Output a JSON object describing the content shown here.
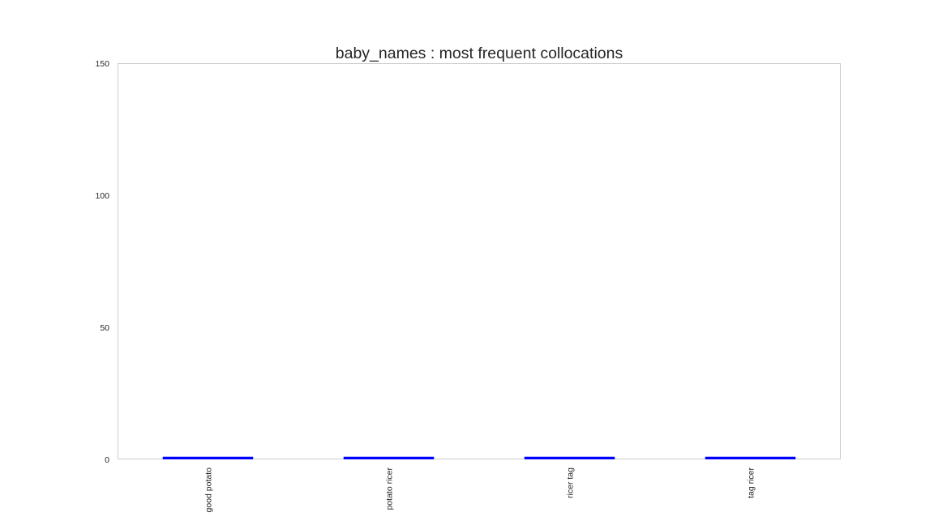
{
  "chart_data": {
    "type": "bar",
    "title": "baby_names : most frequent collocations",
    "xlabel": "",
    "ylabel": "",
    "categories": [
      "good potato",
      "potato ricer",
      "ricer tag",
      "tag ricer"
    ],
    "values": [
      1,
      1,
      1,
      1
    ],
    "ylim": [
      0,
      150
    ],
    "yticks": [
      0,
      50,
      100,
      150
    ],
    "bar_color": "#0000ff",
    "grid": false,
    "legend": "none"
  }
}
